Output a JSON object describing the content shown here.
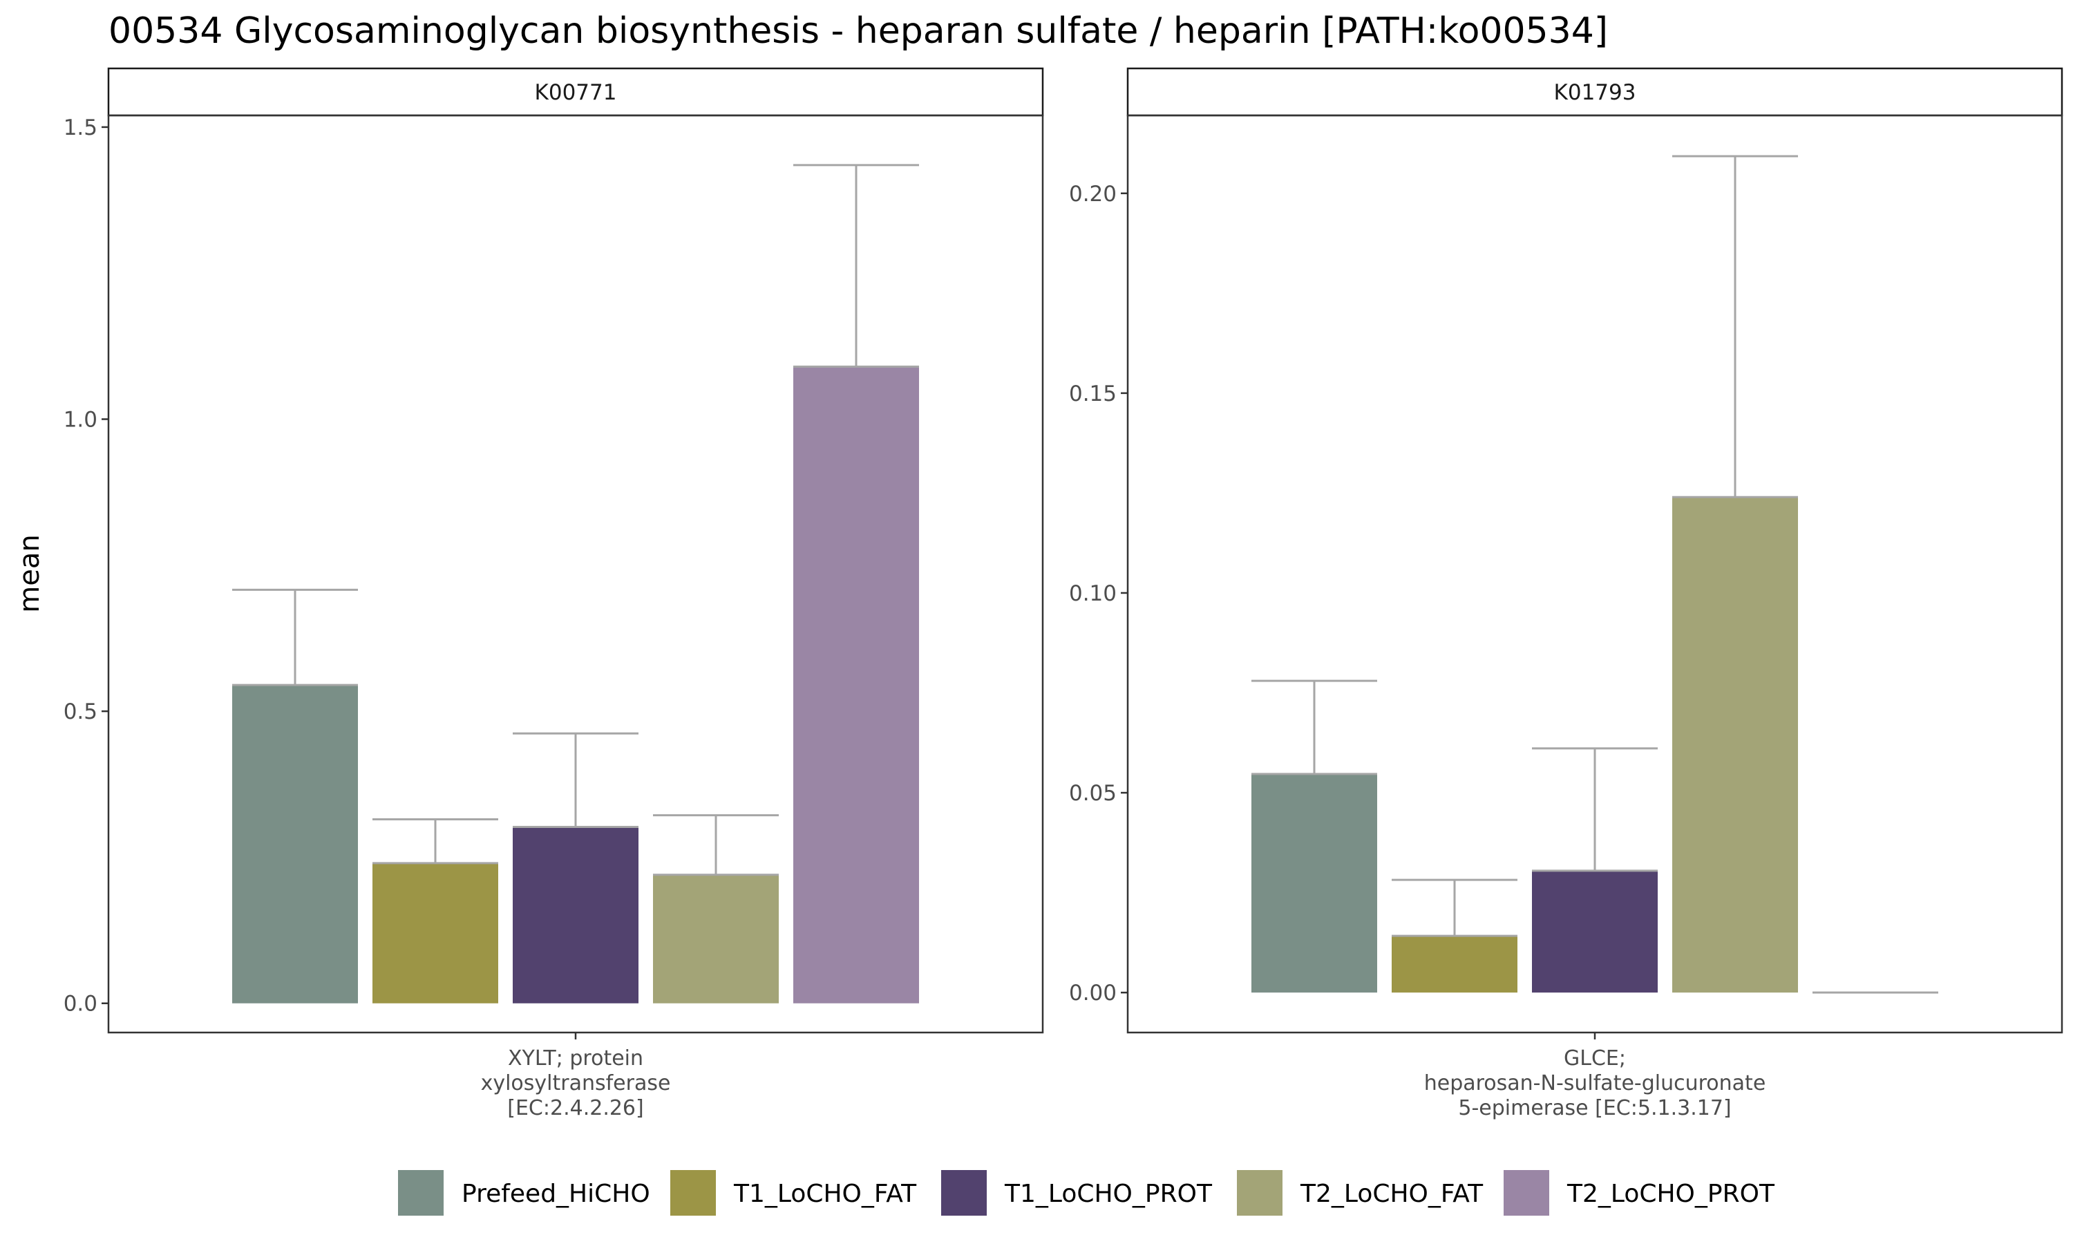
{
  "title": "00534 Glycosaminoglycan biosynthesis - heparan sulfate / heparin [PATH:ko00534]",
  "chart_data": {
    "type": "bar",
    "ylabel": "mean",
    "series_names": [
      "Prefeed_HiCHO",
      "T1_LoCHO_FAT",
      "T1_LoCHO_PROT",
      "T2_LoCHO_FAT",
      "T2_LoCHO_PROT"
    ],
    "colors": [
      "#7A8F87",
      "#9C9546",
      "#52426E",
      "#A3A477",
      "#9A86A5"
    ],
    "error_bar_color": "#A6A6A6",
    "grid": false,
    "legend_position": "bottom",
    "panels": [
      {
        "strip": "K00771",
        "category_lines": [
          "XYLT; protein",
          "xylosyltransferase",
          "[EC:2.4.2.26]"
        ],
        "ylim": [
          -0.05,
          1.52
        ],
        "yticks": [
          0.0,
          0.5,
          1.0,
          1.5
        ],
        "ytick_labels": [
          "0.0",
          "0.5",
          "1.0",
          "1.5"
        ],
        "values": [
          0.545,
          0.24,
          0.302,
          0.22,
          1.09
        ],
        "upper": [
          0.708,
          0.315,
          0.462,
          0.322,
          1.435
        ]
      },
      {
        "strip": "K01793",
        "category_lines": [
          "GLCE;",
          "heparosan-N-sulfate-glucuronate",
          "5-epimerase [EC:5.1.3.17]"
        ],
        "ylim": [
          -0.01,
          0.2195
        ],
        "yticks": [
          0.0,
          0.05,
          0.1,
          0.15,
          0.2
        ],
        "ytick_labels": [
          "0.00",
          "0.05",
          "0.10",
          "0.15",
          "0.20"
        ],
        "values": [
          0.0547,
          0.0142,
          0.0305,
          0.124,
          0.0
        ],
        "upper": [
          0.078,
          0.0282,
          0.0611,
          0.2093,
          0.0
        ]
      }
    ]
  }
}
